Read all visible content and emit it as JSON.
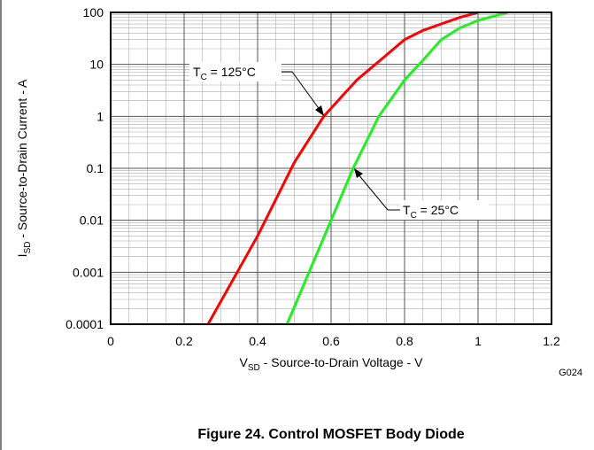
{
  "chart_data": {
    "type": "line",
    "title": "Figure 24. Control MOSFET Body Diode",
    "figure_code": "G024",
    "xlabel": {
      "main": "V",
      "sub": "SD",
      "rest": " - Source-to-Drain Voltage - V"
    },
    "ylabel": {
      "main": "I",
      "sub": "SD",
      "rest": " - Source-to-Drain Current - A"
    },
    "xlim": [
      0,
      1.2
    ],
    "xticks": [
      0,
      0.2,
      0.4,
      0.6,
      0.8,
      1,
      1.2
    ],
    "ylim": [
      0.0001,
      100
    ],
    "yticks": [
      0.0001,
      0.001,
      0.01,
      0.1,
      1,
      10,
      100
    ],
    "ylog": true,
    "grid": true,
    "minor_grid": true,
    "series": [
      {
        "color": "#ff0000",
        "x": [
          0.265,
          0.4,
          0.5,
          0.58,
          0.67,
          0.75,
          0.8,
          0.85,
          0.9,
          0.95,
          1.0
        ],
        "values": [
          0.0001,
          0.005,
          0.13,
          1,
          5,
          15,
          30,
          45,
          60,
          80,
          100
        ]
      },
      {
        "color": "#22ee22",
        "x": [
          0.48,
          0.6,
          0.66,
          0.73,
          0.8,
          0.85,
          0.9,
          0.95,
          1.0,
          1.08
        ],
        "values": [
          0.0001,
          0.01,
          0.1,
          1,
          5,
          12,
          30,
          50,
          70,
          100
        ]
      }
    ],
    "annotations": [
      {
        "main": "T",
        "sub": "C",
        "rest": " = 125°C"
      },
      {
        "main": "T",
        "sub": "C",
        "rest": " = 25°C"
      }
    ]
  }
}
